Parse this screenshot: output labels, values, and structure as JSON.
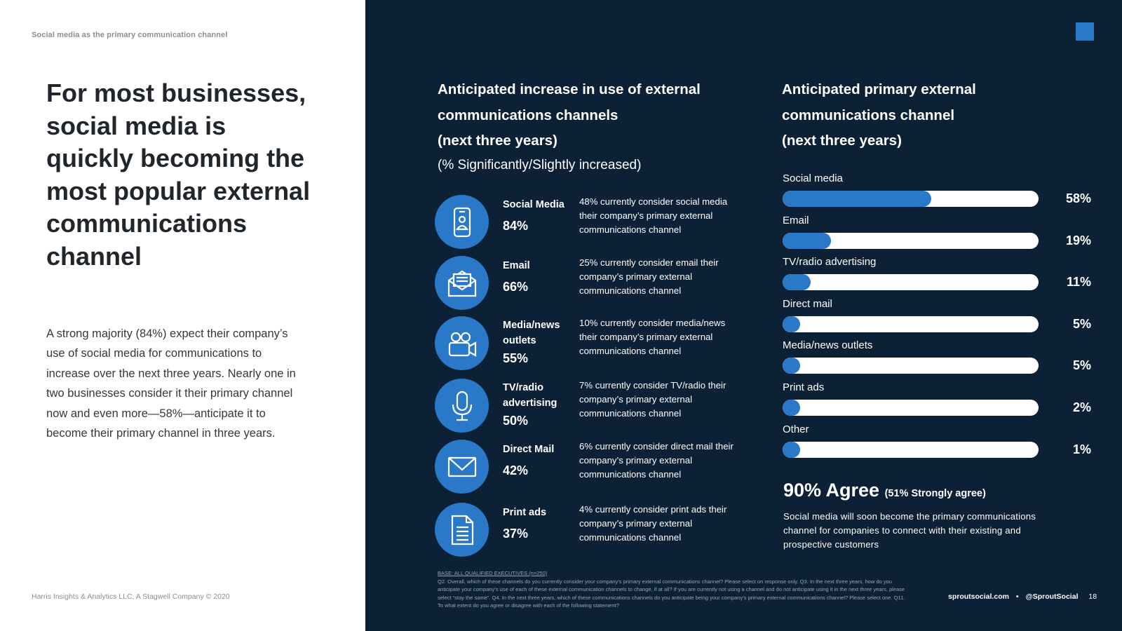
{
  "left": {
    "eyebrow": "Social media as the primary communication channel",
    "headline": "For most businesses, social media is quickly becoming the most popular external communications channel",
    "body": "A strong majority (84%) expect their company’s use of social media for communications to increase over the next three years. Nearly one in two businesses consider it their primary channel now and even more—58%—anticipate it to become their primary channel in three years.",
    "footer": "Harris Insights & Analytics LLC, A Stagwell Company © 2020"
  },
  "increase": {
    "title_line1": "Anticipated increase in use of external",
    "title_line2": "communications channels",
    "title_line3": "(next three years)",
    "subtitle": "(% Significantly/Slightly increased)",
    "rows": [
      {
        "icon": "smartphone-icon",
        "name": "Social Media",
        "pct": "84%",
        "desc": "48% currently consider social media their company’s primary external communications channel"
      },
      {
        "icon": "open-envelope-icon",
        "name": "Email",
        "pct": "66%",
        "desc": "25% currently consider email their company’s primary external communications channel"
      },
      {
        "icon": "video-camera-icon",
        "name": "Media/news outlets",
        "pct": "55%",
        "desc": "10% currently consider media/news their company’s primary external communications channel"
      },
      {
        "icon": "microphone-icon",
        "name": "TV/radio advertising",
        "pct": "50%",
        "desc": "7% currently consider TV/radio their company’s primary external communications channel"
      },
      {
        "icon": "envelope-icon",
        "name": "Direct Mail",
        "pct": "42%",
        "desc": "6% currently consider direct mail their company’s primary external communications channel"
      },
      {
        "icon": "document-icon",
        "name": "Print ads",
        "pct": "37%",
        "desc": "4% currently consider print ads their company’s primary external communications channel"
      }
    ]
  },
  "chart_data": {
    "type": "bar",
    "title": "Anticipated primary external communications channel (next three years)",
    "categories": [
      "Social media",
      "Email",
      "TV/radio advertising",
      "Direct mail",
      "Media/news outlets",
      "Print ads",
      "Other"
    ],
    "values": [
      58,
      19,
      11,
      5,
      5,
      2,
      1
    ],
    "value_labels": [
      "58%",
      "19%",
      "11%",
      "5%",
      "5%",
      "2%",
      "1%"
    ],
    "xlim": [
      0,
      100
    ],
    "orientation": "horizontal",
    "colors": {
      "fill": "#2979c8",
      "track": "#ffffff"
    }
  },
  "primary": {
    "title_line1": "Anticipated primary external",
    "title_line2": "communications channel",
    "title_line3": "(next three years)"
  },
  "agree": {
    "big": "90% Agree",
    "small": "(51% Strongly agree)",
    "desc": "Social media will soon become the primary communications channel for companies to connect with their existing and prospective customers"
  },
  "footnote": {
    "base": "BASE: ALL QUALIFIED EXECUTIVES (n=250)",
    "text": "Q2. Overall, which of these channels do you currently consider your company’s primary external communications channel? Please select on response only. Q3. In the next three years, how do you anticipate your company’s use of each of these external communication channels to change, if at all? If you are currently not using a channel and do not anticipate using it in the next three years, please select “stay the same”. Q4. In the next three years, which of these communications channels do you anticipate being your company’s primary external communications channel? Please select one. Q11. To what extent do you agree or disagree with each of the following statement?"
  },
  "footer_right": {
    "site": "sproutsocial.com",
    "separator": "•",
    "handle": "@SproutSocial",
    "page": "18"
  },
  "colors": {
    "navy": "#0c2136",
    "accent": "#2979c8"
  }
}
